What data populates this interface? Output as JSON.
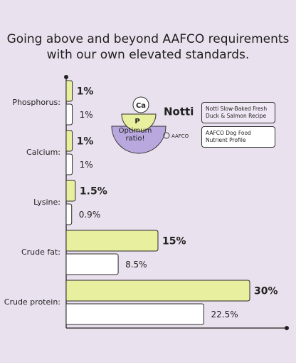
{
  "chart_data": {
    "type": "bar",
    "orientation": "horizontal",
    "title": "Going above and beyond AAFCO requirements with our own elevated standards.",
    "categories": [
      "Phosphorus:",
      "Calcium:",
      "Lysine:",
      "Crude fat:",
      "Crude protein:"
    ],
    "series": [
      {
        "name": "Notti Slow-Baked Fresh Duck & Salmon Recipe",
        "color": "#e8ef9e",
        "values": [
          1,
          1,
          1.5,
          15,
          30
        ],
        "value_labels": [
          "1%",
          "1%",
          "1.5%",
          "15%",
          "30%"
        ]
      },
      {
        "name": "AAFCO Dog Food Nutrient Profile",
        "color": "#ffffff",
        "values": [
          1,
          1,
          0.9,
          8.5,
          22.5
        ],
        "value_labels": [
          "1%",
          "1%",
          "0.9%",
          "8.5%",
          "22.5%"
        ]
      }
    ],
    "annotations": {
      "badge_top": "Ca",
      "badge_bottom": "P",
      "badge_caption": "Optimum ratio!",
      "logo_1": "Notti",
      "logo_2": "AAFCO"
    }
  }
}
